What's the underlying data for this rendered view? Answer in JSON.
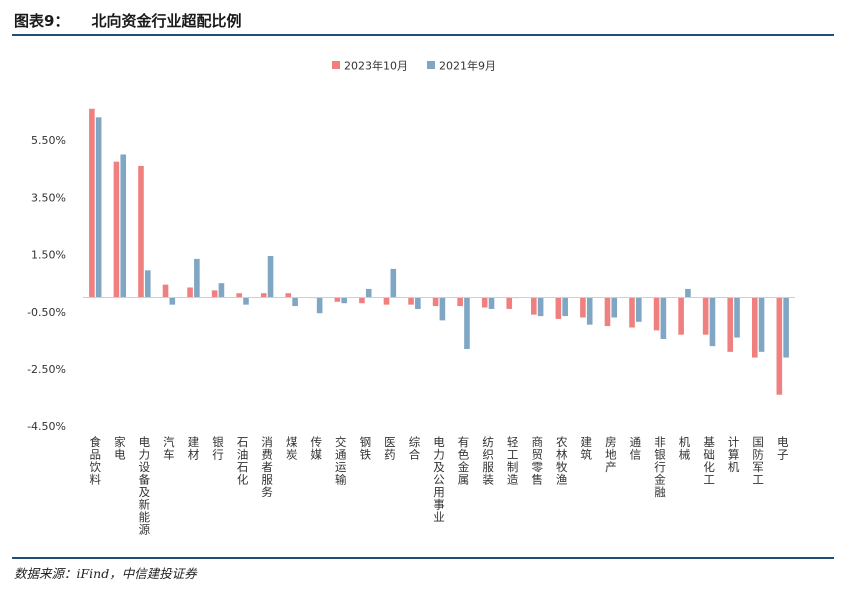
{
  "header": {
    "figure_label": "图表9：",
    "title": "北向资金行业超配比例"
  },
  "footer": {
    "source": "数据来源：iFind，中信建投证券"
  },
  "chart_data": {
    "type": "bar",
    "categories": [
      "食品饮料",
      "家电",
      "电力设备及新能源",
      "汽车",
      "建材",
      "银行",
      "石油石化",
      "消费者服务",
      "煤炭",
      "传媒",
      "交通运输",
      "钢铁",
      "医药",
      "综合",
      "电力及公用事业",
      "有色金属",
      "纺织服装",
      "轻工制造",
      "商贸零售",
      "农林牧渔",
      "建筑",
      "房地产",
      "通信",
      "非银行金融",
      "机械",
      "基础化工",
      "计算机",
      "国防军工",
      "电子"
    ],
    "series": [
      {
        "name": "2023年10月",
        "color": "#f08080",
        "values": [
          6.6,
          4.75,
          4.6,
          0.45,
          0.35,
          0.25,
          0.15,
          0.15,
          0.15,
          0.0,
          -0.15,
          -0.2,
          -0.25,
          -0.25,
          -0.3,
          -0.3,
          -0.35,
          -0.4,
          -0.6,
          -0.75,
          -0.7,
          -1.0,
          -1.05,
          -1.15,
          -1.3,
          -1.3,
          -1.9,
          -2.1,
          -3.4
        ]
      },
      {
        "name": "2021年9月",
        "color": "#7fa7c3",
        "values": [
          6.3,
          5.0,
          0.95,
          -0.25,
          1.35,
          0.5,
          -0.25,
          1.45,
          -0.3,
          -0.55,
          -0.2,
          0.3,
          1.0,
          -0.4,
          -0.8,
          -1.8,
          -0.4,
          0.0,
          -0.65,
          -0.65,
          -0.95,
          -0.7,
          -0.85,
          -1.45,
          0.3,
          -1.7,
          -1.4,
          -1.9,
          -2.1
        ]
      }
    ],
    "y_ticks": [
      "5.50%",
      "3.50%",
      "1.50%",
      "-0.50%",
      "-2.50%",
      "-4.50%"
    ],
    "y_tick_values": [
      5.5,
      3.5,
      1.5,
      -0.5,
      -2.5,
      -4.5
    ],
    "ylim": [
      -4.5,
      6.6
    ],
    "legend_position": "top-center",
    "grid": false
  }
}
